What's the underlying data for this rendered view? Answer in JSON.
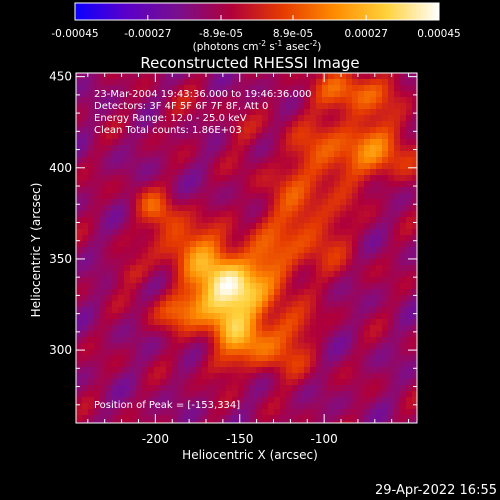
{
  "chart_data": {
    "type": "heatmap",
    "title": "Reconstructed RHESSI Image",
    "xlabel": "Heliocentric X (arcsec)",
    "ylabel": "Heliocentric Y (arcsec)",
    "xlim": [
      -247,
      -45
    ],
    "ylim": [
      260,
      452
    ],
    "xticks": [
      -200,
      -150,
      -100
    ],
    "yticks": [
      300,
      350,
      400,
      450
    ],
    "colorbar": {
      "ticks": [
        -0.00045,
        -0.00027,
        -8.9e-05,
        8.9e-05,
        0.00027,
        0.00045
      ],
      "tick_labels": [
        "-0.00045",
        "-0.00027",
        "-8.9e-05",
        "8.9e-05",
        "0.00027",
        "0.00045"
      ],
      "units": "(photons cm",
      "units_sup1": "-2",
      "units_mid": " s",
      "units_sup2": "-1",
      "units_end": " asec",
      "units_sup3": "-2",
      "units_close": ")",
      "range": [
        -0.00045,
        0.00045
      ],
      "colors": [
        "#0a00ff",
        "#5b00c8",
        "#7a0f8c",
        "#b0003a",
        "#e63b00",
        "#ff8c00",
        "#ffd23c",
        "#ffffff"
      ]
    },
    "annotations": [
      "23-Mar-2004 19:43:36.000 to 19:46:36.000",
      "Detectors: 3F 4F 5F 6F 7F 8F, Att 0",
      "Energy Range: 12.0 - 25.0 keV",
      "Clean     Total counts: 1.86E+03"
    ],
    "peak_label": "Position of Peak = [-153,334]",
    "peak": [
      -153,
      334
    ],
    "emission_sources": [
      {
        "x": -153,
        "y": 334,
        "sx": 14,
        "sy": 10,
        "amp": 0.0004,
        "rot": -40
      },
      {
        "x": -160,
        "y": 318,
        "sx": 16,
        "sy": 9,
        "amp": 0.0003,
        "rot": -50
      },
      {
        "x": -178,
        "y": 356,
        "sx": 18,
        "sy": 10,
        "amp": 0.00026,
        "rot": -30
      },
      {
        "x": -185,
        "y": 322,
        "sx": 12,
        "sy": 8,
        "amp": 0.00022,
        "rot": 10
      },
      {
        "x": -132,
        "y": 347,
        "sx": 15,
        "sy": 12,
        "amp": 0.00023,
        "rot": -40
      },
      {
        "x": -112,
        "y": 372,
        "sx": 22,
        "sy": 12,
        "amp": 0.00021,
        "rot": -45
      },
      {
        "x": -100,
        "y": 402,
        "sx": 18,
        "sy": 10,
        "amp": 0.00018,
        "rot": -35
      },
      {
        "x": -70,
        "y": 412,
        "sx": 20,
        "sy": 11,
        "amp": 0.00026,
        "rot": -15
      },
      {
        "x": -82,
        "y": 442,
        "sx": 18,
        "sy": 9,
        "amp": 0.00023,
        "rot": 0
      },
      {
        "x": -134,
        "y": 301,
        "sx": 18,
        "sy": 9,
        "amp": 0.00019,
        "rot": -30
      },
      {
        "x": -160,
        "y": 292,
        "sx": 10,
        "sy": 6,
        "amp": 0.00012,
        "rot": 0
      },
      {
        "x": -120,
        "y": 313,
        "sx": 10,
        "sy": 8,
        "amp": 0.00017,
        "rot": 0
      },
      {
        "x": -200,
        "y": 378,
        "sx": 10,
        "sy": 6,
        "amp": 0.00015,
        "rot": -35
      },
      {
        "x": -215,
        "y": 342,
        "sx": 8,
        "sy": 5,
        "amp": 0.00011,
        "rot": 0
      },
      {
        "x": -150,
        "y": 420,
        "sx": 8,
        "sy": 6,
        "amp": 8e-05,
        "rot": 0
      },
      {
        "x": -185,
        "y": 432,
        "sx": 10,
        "sy": 6,
        "amp": 7e-05,
        "rot": 0
      }
    ],
    "background_level": -0.00012,
    "grid": false
  },
  "footer": {
    "timestamp": "29-Apr-2022 16:55"
  }
}
